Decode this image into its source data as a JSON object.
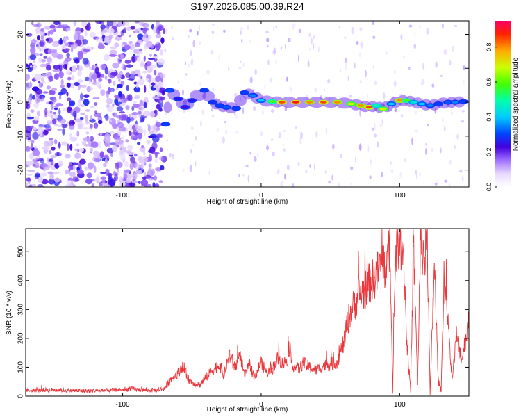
{
  "figure_title": "S197.2026.085.00.39.R24",
  "chart_data": [
    {
      "type": "heatmap",
      "title": "S197.2026.085.00.39.R24",
      "xlabel": "Height of straight line (km)",
      "ylabel": "Frequency (Hz)",
      "xlim": [
        -170,
        150
      ],
      "ylim": [
        -25,
        24
      ],
      "xticks": [
        -100,
        0,
        100
      ],
      "yticks": [
        -20,
        -10,
        0,
        10,
        20
      ],
      "xtick_labels": [
        "-100",
        "0",
        "100"
      ],
      "ytick_labels": [
        "-20",
        "-10",
        "0",
        "10",
        "20"
      ],
      "colorbar": {
        "label": "Normalized spectral amplitude",
        "range": [
          0.0,
          0.95
        ],
        "ticks": [
          0.0,
          0.2,
          0.4,
          0.6,
          0.8
        ],
        "tick_labels": [
          "0.0",
          "0.2",
          "0.4",
          "0.6",
          "0.8"
        ]
      },
      "signal_track": {
        "description": "dominant spectral line (height km, frequency Hz, amplitude)",
        "points": [
          [
            -69,
            -6.5,
            0.3
          ],
          [
            -66,
            3.5,
            0.32
          ],
          [
            -60,
            1.0,
            0.25
          ],
          [
            -55,
            -1.5,
            0.22
          ],
          [
            -50,
            0.5,
            0.25
          ],
          [
            -41,
            3.5,
            0.3
          ],
          [
            -35,
            0.0,
            0.28
          ],
          [
            -30,
            -1.0,
            0.3
          ],
          [
            -25,
            -1.5,
            0.32
          ],
          [
            -18,
            -1.8,
            0.3
          ],
          [
            -12,
            2.8,
            0.3
          ],
          [
            -6,
            2.0,
            0.35
          ],
          [
            0,
            0.5,
            0.4
          ],
          [
            8,
            0.2,
            0.6
          ],
          [
            15,
            0.0,
            0.85
          ],
          [
            25,
            0.0,
            0.9
          ],
          [
            35,
            0.0,
            0.8
          ],
          [
            45,
            0.0,
            0.85
          ],
          [
            55,
            0.0,
            0.8
          ],
          [
            65,
            -0.5,
            0.7
          ],
          [
            72,
            -1.0,
            0.8
          ],
          [
            78,
            -1.5,
            0.85
          ],
          [
            83,
            -1.0,
            0.5
          ],
          [
            88,
            -2.0,
            0.7
          ],
          [
            94,
            -0.5,
            0.4
          ],
          [
            100,
            0.5,
            0.8
          ],
          [
            105,
            0.5,
            0.6
          ],
          [
            110,
            0.0,
            0.45
          ],
          [
            116,
            -0.5,
            0.4
          ],
          [
            122,
            -1.0,
            0.35
          ],
          [
            128,
            -0.5,
            0.3
          ],
          [
            135,
            0.0,
            0.32
          ],
          [
            140,
            0.0,
            0.35
          ],
          [
            146,
            0.2,
            0.3
          ]
        ]
      },
      "noise_region": {
        "x_range": [
          -170,
          -70
        ],
        "amplitude_max": 0.2
      }
    },
    {
      "type": "line",
      "xlabel": "Height of straight line (km)",
      "ylabel": "SNR (10 * v/v)",
      "xlim": [
        -170,
        150
      ],
      "ylim": [
        0,
        580
      ],
      "xticks": [
        -100,
        0,
        100
      ],
      "yticks": [
        0,
        100,
        200,
        300,
        400,
        500
      ],
      "xtick_labels": [
        "-100",
        "0",
        "100"
      ],
      "ytick_labels": [
        "0",
        "100",
        "200",
        "300",
        "400",
        "500"
      ],
      "series": [
        {
          "name": "SNR",
          "color": "#e8383d",
          "x": [
            -170,
            -150,
            -130,
            -110,
            -95,
            -80,
            -70,
            -65,
            -60,
            -57,
            -52,
            -48,
            -44,
            -40,
            -35,
            -30,
            -27,
            -23,
            -19,
            -15,
            -12,
            -8,
            -5,
            0,
            4,
            8,
            12,
            16,
            20,
            24,
            28,
            30,
            35,
            40,
            45,
            50,
            55,
            60,
            62,
            65,
            68,
            70,
            74,
            78,
            82,
            85,
            88,
            90,
            93,
            95,
            97,
            100,
            103,
            105,
            108,
            110,
            113,
            115,
            118,
            120,
            122,
            125,
            128,
            130,
            132,
            135,
            138,
            141,
            145,
            150
          ],
          "y": [
            20,
            22,
            18,
            20,
            25,
            20,
            25,
            60,
            80,
            105,
            55,
            45,
            40,
            65,
            90,
            110,
            70,
            145,
            100,
            135,
            70,
            110,
            60,
            120,
            80,
            95,
            130,
            110,
            140,
            100,
            95,
            115,
            100,
            90,
            105,
            110,
            120,
            190,
            250,
            300,
            320,
            350,
            360,
            390,
            410,
            440,
            470,
            430,
            520,
            10,
            500,
            540,
            500,
            200,
            15,
            520,
            40,
            530,
            480,
            520,
            5,
            460,
            50,
            20,
            420,
            240,
            60,
            210,
            130,
            260
          ]
        }
      ]
    }
  ]
}
